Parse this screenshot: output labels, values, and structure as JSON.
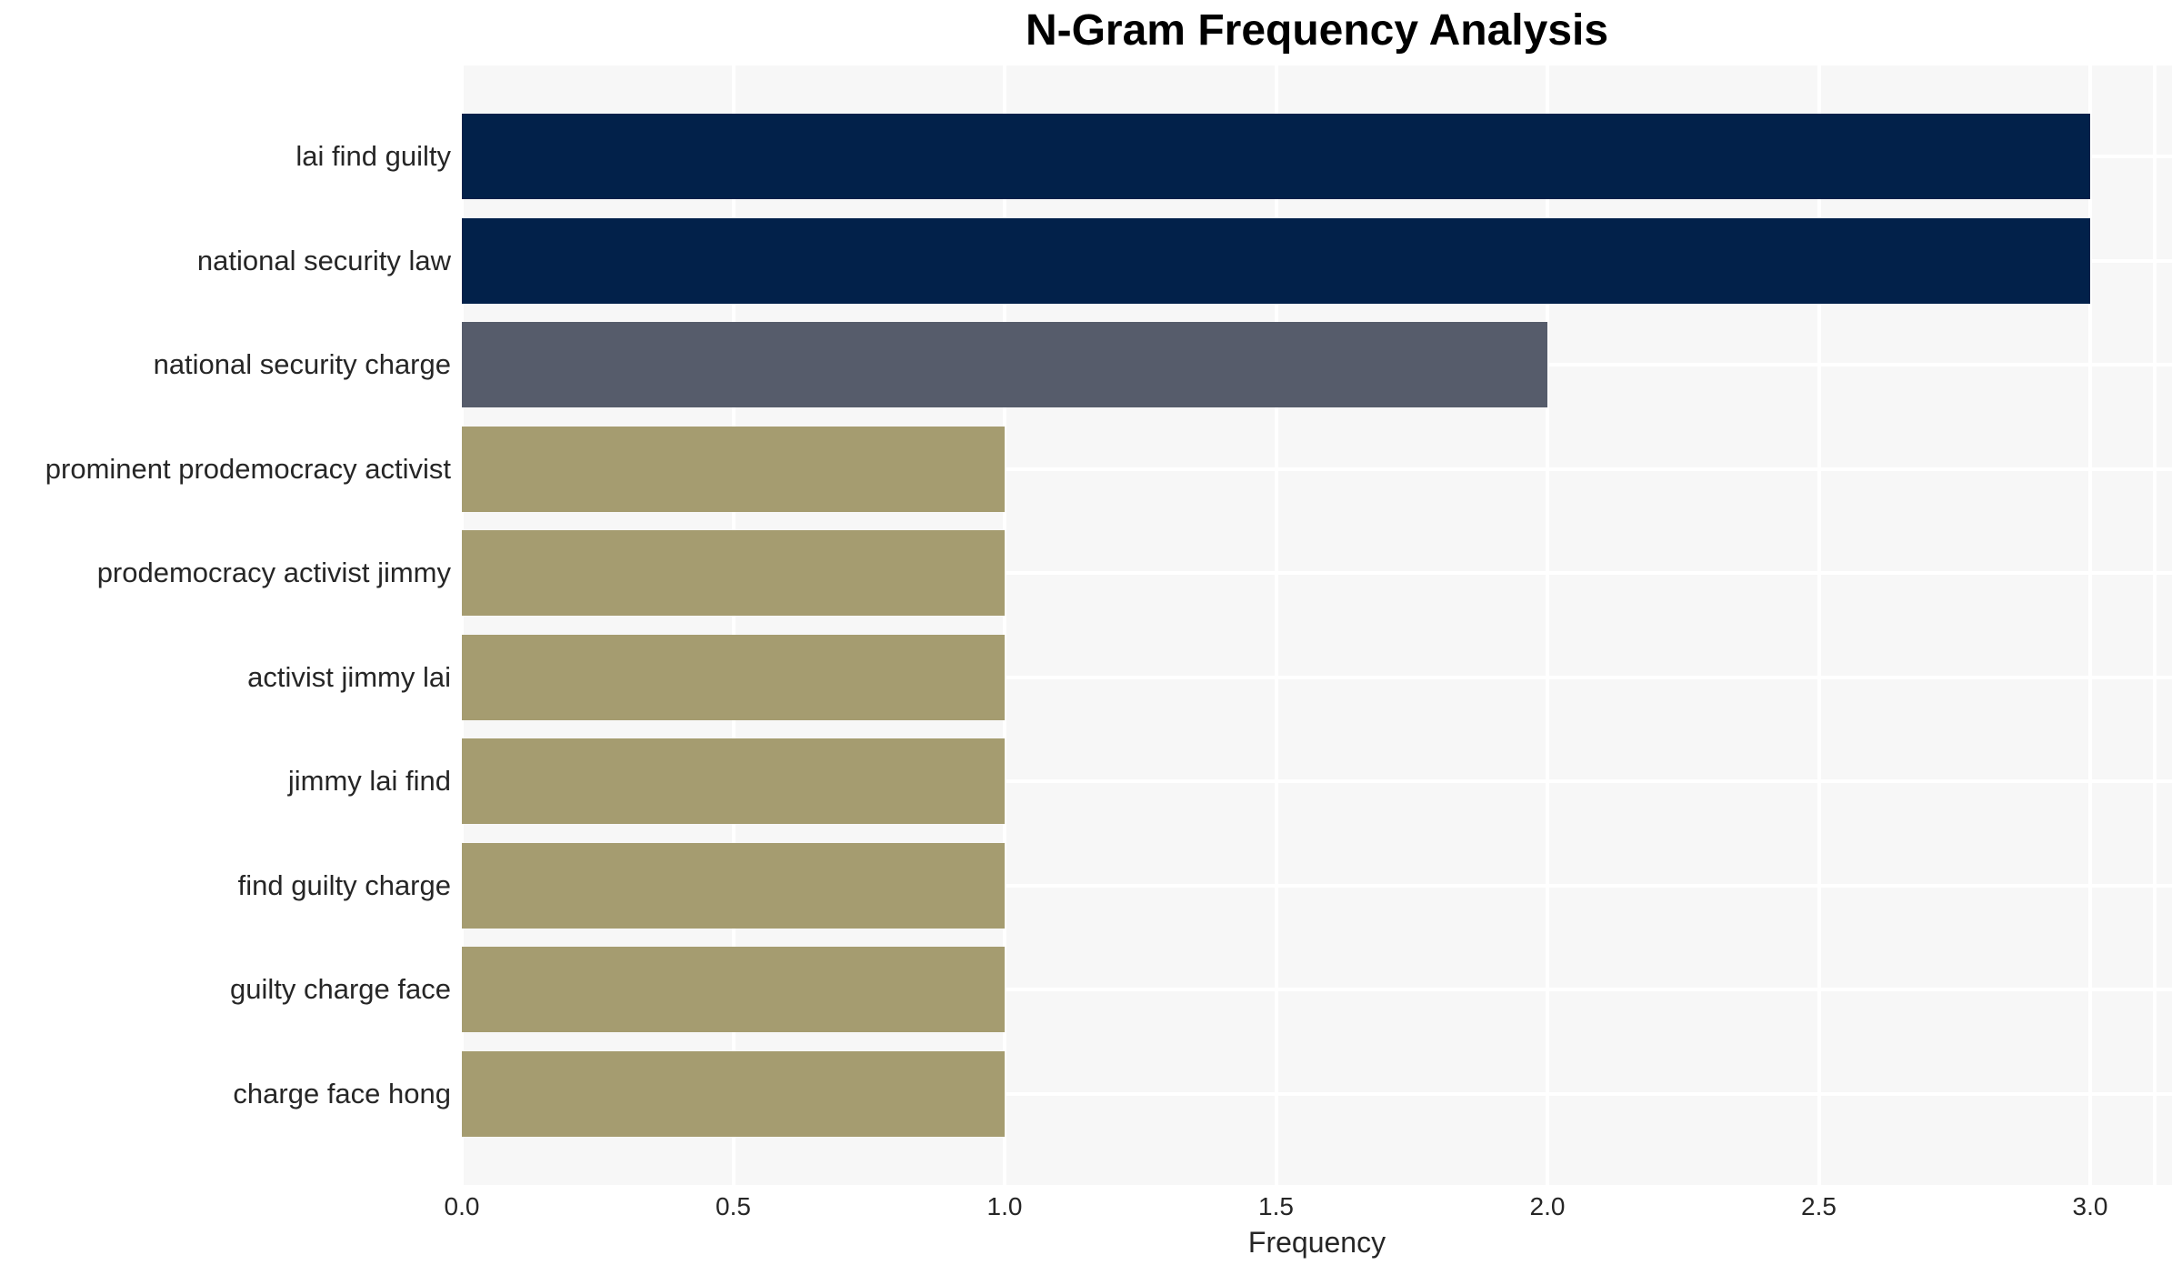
{
  "chart_data": {
    "type": "bar",
    "orientation": "horizontal",
    "title": "N-Gram Frequency Analysis",
    "xlabel": "Frequency",
    "ylabel": "",
    "categories": [
      "lai find guilty",
      "national security law",
      "national security charge",
      "prominent prodemocracy activist",
      "prodemocracy activist jimmy",
      "activist jimmy lai",
      "jimmy lai find",
      "find guilty charge",
      "guilty charge face",
      "charge face hong"
    ],
    "values": [
      3,
      3,
      2,
      1,
      1,
      1,
      1,
      1,
      1,
      1
    ],
    "xticks": [
      "0.0",
      "0.5",
      "1.0",
      "1.5",
      "2.0",
      "2.5",
      "3.0"
    ],
    "xlim": [
      0,
      3.15
    ],
    "grid": true,
    "legend": false,
    "bar_colors": [
      "#02214a",
      "#02214a",
      "#565c6b",
      "#a59c70",
      "#a59c70",
      "#a59c70",
      "#a59c70",
      "#a59c70",
      "#a59c70",
      "#a59c70"
    ],
    "colors": {
      "bar_value_3": "#02214a",
      "bar_value_2": "#565c6b",
      "bar_value_1": "#a59c70",
      "panel_background": "#f7f7f7",
      "gridline": "#ffffff",
      "tick_text": "#262626",
      "title_text": "#000000"
    }
  }
}
